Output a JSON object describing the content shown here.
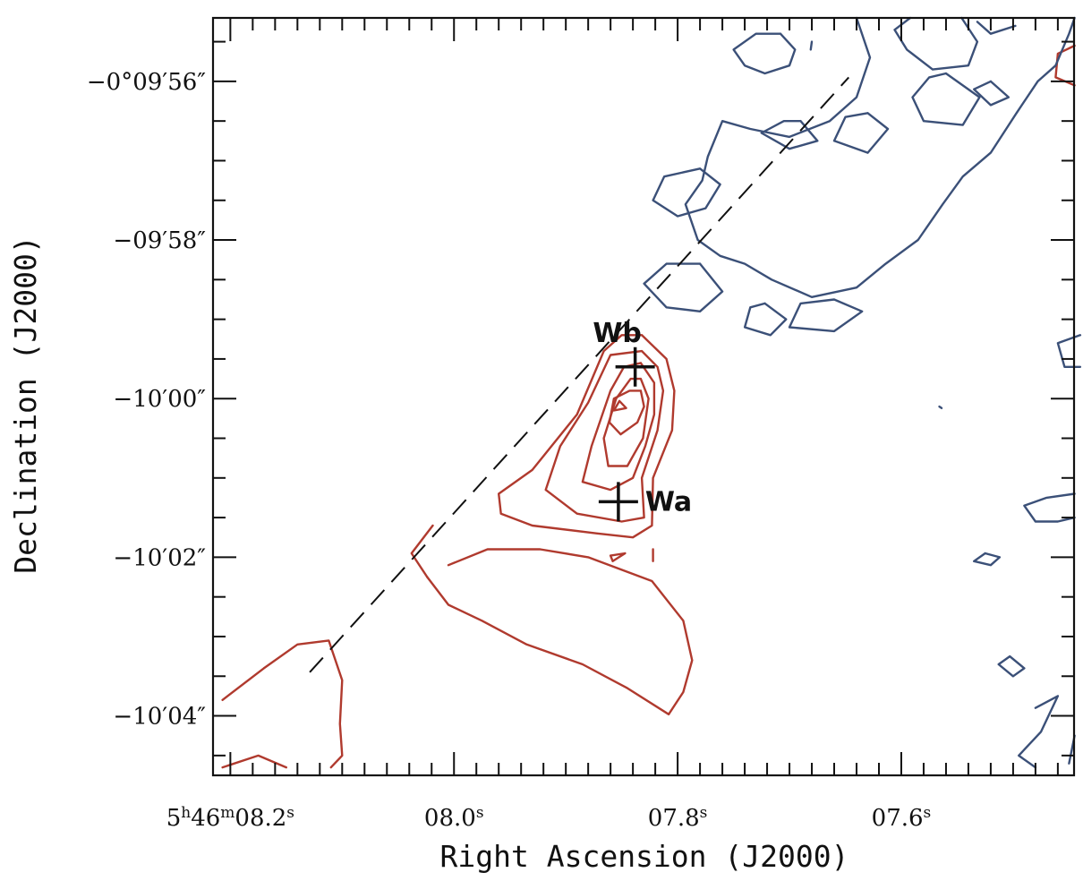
{
  "chart_data": {
    "type": "contour",
    "xlabel": "Right Ascension (J2000)",
    "ylabel": "Declination (J2000)",
    "x_ticks": [
      {
        "ra_s": 8.2,
        "parts": [
          [
            "5",
            "n"
          ],
          [
            "h",
            "sup"
          ],
          [
            "46",
            "n"
          ],
          [
            "m",
            "sup"
          ],
          [
            "08.2",
            "n"
          ],
          [
            "s",
            "sup"
          ]
        ]
      },
      {
        "ra_s": 8.0,
        "parts": [
          [
            "08.0",
            "n"
          ],
          [
            "s",
            "sup"
          ]
        ]
      },
      {
        "ra_s": 7.8,
        "parts": [
          [
            "07.8",
            "n"
          ],
          [
            "s",
            "sup"
          ]
        ]
      },
      {
        "ra_s": 7.6,
        "parts": [
          [
            "07.6",
            "n"
          ],
          [
            "s",
            "sup"
          ]
        ]
      }
    ],
    "y_ticks": [
      {
        "dec_arcsec": 596,
        "label": "−0°09′56″"
      },
      {
        "dec_arcsec": 598,
        "label": "−09′58″"
      },
      {
        "dec_arcsec": 600,
        "label": "−10′00″"
      },
      {
        "dec_arcsec": 602,
        "label": "−10′02″"
      },
      {
        "dec_arcsec": 604,
        "label": "−10′04″"
      }
    ],
    "xlim": [
      8.2155,
      7.4455
    ],
    "ylim": [
      595.2,
      604.75
    ],
    "sources": [
      {
        "name": "Wb",
        "ra_s": 7.838,
        "dec_arcsec": 599.6
      },
      {
        "name": "Wa",
        "ra_s": 7.853,
        "dec_arcsec": 601.3
      }
    ],
    "outflow_axis": {
      "from": [
        8.129,
        603.45
      ],
      "to": [
        7.647,
        595.95
      ]
    },
    "colors": {
      "red_contours": "#b03a2e",
      "blue_contours": "#3b5078",
      "axis": "#111111"
    },
    "red_contours": [
      [
        [
          7.832,
          599.2
        ],
        [
          7.81,
          599.5
        ],
        [
          7.803,
          599.9
        ],
        [
          7.805,
          600.4
        ],
        [
          7.822,
          601.0
        ],
        [
          7.823,
          601.6
        ],
        [
          7.84,
          601.75
        ],
        [
          7.872,
          601.7
        ],
        [
          7.93,
          601.6
        ],
        [
          7.958,
          601.45
        ],
        [
          7.96,
          601.2
        ],
        [
          7.93,
          600.9
        ],
        [
          7.89,
          600.2
        ],
        [
          7.866,
          599.4
        ],
        [
          7.85,
          599.2
        ],
        [
          7.832,
          599.2
        ]
      ],
      [
        [
          7.832,
          599.4
        ],
        [
          7.818,
          599.6
        ],
        [
          7.813,
          599.9
        ],
        [
          7.818,
          600.4
        ],
        [
          7.832,
          601.0
        ],
        [
          7.83,
          601.5
        ],
        [
          7.85,
          601.55
        ],
        [
          7.89,
          601.45
        ],
        [
          7.918,
          601.15
        ],
        [
          7.905,
          600.6
        ],
        [
          7.88,
          600.05
        ],
        [
          7.86,
          599.45
        ],
        [
          7.832,
          599.4
        ]
      ],
      [
        [
          7.833,
          599.55
        ],
        [
          7.821,
          599.8
        ],
        [
          7.821,
          600.2
        ],
        [
          7.829,
          600.6
        ],
        [
          7.84,
          601.0
        ],
        [
          7.86,
          601.15
        ],
        [
          7.885,
          601.05
        ],
        [
          7.877,
          600.6
        ],
        [
          7.86,
          599.9
        ],
        [
          7.848,
          599.6
        ],
        [
          7.833,
          599.55
        ]
      ],
      [
        [
          7.833,
          599.75
        ],
        [
          7.826,
          600.0
        ],
        [
          7.831,
          600.5
        ],
        [
          7.845,
          600.85
        ],
        [
          7.862,
          600.85
        ],
        [
          7.866,
          600.5
        ],
        [
          7.855,
          600.0
        ],
        [
          7.842,
          599.75
        ],
        [
          7.833,
          599.75
        ]
      ],
      [
        [
          7.833,
          599.9
        ],
        [
          7.83,
          600.1
        ],
        [
          7.836,
          600.3
        ],
        [
          7.851,
          600.45
        ],
        [
          7.861,
          600.3
        ],
        [
          7.857,
          600.0
        ],
        [
          7.843,
          599.9
        ],
        [
          7.833,
          599.9
        ]
      ],
      [
        [
          7.852,
          600.03
        ],
        [
          7.846,
          600.12
        ],
        [
          7.857,
          600.15
        ],
        [
          7.852,
          600.03
        ]
      ],
      [
        [
          7.847,
          601.95
        ],
        [
          7.86,
          601.98
        ],
        [
          7.858,
          602.05
        ],
        [
          7.847,
          601.95
        ]
      ],
      [
        [
          7.822,
          601.9
        ],
        [
          7.822,
          602.05
        ]
      ],
      [
        [
          8.005,
          602.1
        ],
        [
          7.97,
          601.9
        ],
        [
          7.923,
          601.9
        ],
        [
          7.88,
          602.0
        ],
        [
          7.823,
          602.3
        ],
        [
          7.795,
          602.8
        ],
        [
          7.787,
          603.3
        ],
        [
          7.795,
          603.7
        ],
        [
          7.808,
          603.98
        ],
        [
          7.845,
          603.65
        ],
        [
          7.885,
          603.35
        ],
        [
          7.935,
          603.1
        ],
        [
          7.975,
          602.8
        ],
        [
          8.005,
          602.6
        ],
        [
          8.024,
          602.25
        ]
      ],
      [
        [
          8.024,
          602.25
        ],
        [
          8.038,
          601.95
        ],
        [
          8.019,
          601.6
        ]
      ],
      [
        [
          8.207,
          603.8
        ],
        [
          8.17,
          603.4
        ],
        [
          8.14,
          603.1
        ],
        [
          8.112,
          603.05
        ],
        [
          8.1,
          603.55
        ],
        [
          8.102,
          604.1
        ],
        [
          8.1,
          604.5
        ],
        [
          8.11,
          604.65
        ]
      ],
      [
        [
          8.207,
          604.65
        ],
        [
          8.175,
          604.5
        ],
        [
          8.15,
          604.65
        ]
      ],
      [
        [
          7.445,
          595.55
        ],
        [
          7.46,
          595.65
        ],
        [
          7.462,
          595.95
        ],
        [
          7.445,
          596.05
        ]
      ]
    ],
    "blue_contours": [
      [
        [
          7.64,
          595.2
        ],
        [
          7.628,
          595.7
        ],
        [
          7.64,
          596.2
        ],
        [
          7.664,
          596.5
        ],
        [
          7.7,
          596.7
        ],
        [
          7.735,
          596.6
        ],
        [
          7.76,
          596.5
        ],
        [
          7.773,
          596.95
        ],
        [
          7.778,
          597.25
        ],
        [
          7.793,
          597.55
        ],
        [
          7.782,
          598.0
        ],
        [
          7.762,
          598.2
        ],
        [
          7.74,
          598.3
        ],
        [
          7.716,
          598.5
        ],
        [
          7.68,
          598.72
        ],
        [
          7.64,
          598.6
        ],
        [
          7.614,
          598.3
        ],
        [
          7.585,
          598.0
        ],
        [
          7.563,
          597.55
        ],
        [
          7.545,
          597.2
        ],
        [
          7.52,
          596.9
        ],
        [
          7.497,
          596.4
        ],
        [
          7.478,
          596.0
        ],
        [
          7.462,
          595.8
        ],
        [
          7.45,
          595.4
        ],
        [
          7.445,
          595.2
        ]
      ],
      [
        [
          7.546,
          595.2
        ],
        [
          7.532,
          595.5
        ],
        [
          7.54,
          595.8
        ],
        [
          7.572,
          595.85
        ],
        [
          7.595,
          595.6
        ],
        [
          7.606,
          595.35
        ],
        [
          7.592,
          595.2
        ]
      ],
      [
        [
          7.532,
          595.25
        ],
        [
          7.52,
          595.4
        ],
        [
          7.498,
          595.3
        ]
      ],
      [
        [
          7.68,
          595.5
        ],
        [
          7.681,
          595.6
        ]
      ],
      [
        [
          7.708,
          595.4
        ],
        [
          7.695,
          595.6
        ],
        [
          7.7,
          595.8
        ],
        [
          7.722,
          595.9
        ],
        [
          7.74,
          595.8
        ],
        [
          7.75,
          595.6
        ],
        [
          7.73,
          595.4
        ],
        [
          7.708,
          595.4
        ]
      ],
      [
        [
          7.56,
          595.9
        ],
        [
          7.53,
          596.2
        ],
        [
          7.545,
          596.55
        ],
        [
          7.58,
          596.5
        ],
        [
          7.59,
          596.2
        ],
        [
          7.575,
          595.95
        ],
        [
          7.56,
          595.9
        ]
      ],
      [
        [
          7.63,
          596.4
        ],
        [
          7.612,
          596.6
        ],
        [
          7.63,
          596.9
        ],
        [
          7.66,
          596.75
        ],
        [
          7.65,
          596.45
        ],
        [
          7.63,
          596.4
        ]
      ],
      [
        [
          7.69,
          596.5
        ],
        [
          7.675,
          596.75
        ],
        [
          7.7,
          596.85
        ],
        [
          7.725,
          596.65
        ],
        [
          7.705,
          596.5
        ],
        [
          7.69,
          596.5
        ]
      ],
      [
        [
          7.78,
          597.1
        ],
        [
          7.762,
          597.3
        ],
        [
          7.775,
          597.6
        ],
        [
          7.8,
          597.7
        ],
        [
          7.822,
          597.5
        ],
        [
          7.812,
          597.2
        ],
        [
          7.78,
          597.1
        ]
      ],
      [
        [
          7.78,
          598.3
        ],
        [
          7.76,
          598.65
        ],
        [
          7.78,
          598.9
        ],
        [
          7.81,
          598.85
        ],
        [
          7.83,
          598.55
        ],
        [
          7.81,
          598.3
        ],
        [
          7.78,
          598.3
        ]
      ],
      [
        [
          7.722,
          598.8
        ],
        [
          7.703,
          599.0
        ],
        [
          7.717,
          599.2
        ],
        [
          7.74,
          599.1
        ],
        [
          7.735,
          598.85
        ],
        [
          7.722,
          598.8
        ]
      ],
      [
        [
          7.66,
          598.75
        ],
        [
          7.635,
          598.9
        ],
        [
          7.66,
          599.15
        ],
        [
          7.7,
          599.1
        ],
        [
          7.69,
          598.8
        ],
        [
          7.66,
          598.75
        ]
      ],
      [
        [
          7.52,
          596.0
        ],
        [
          7.504,
          596.2
        ],
        [
          7.52,
          596.3
        ],
        [
          7.535,
          596.1
        ],
        [
          7.52,
          596.0
        ]
      ],
      [
        [
          7.44,
          599.2
        ],
        [
          7.46,
          599.3
        ],
        [
          7.454,
          599.6
        ],
        [
          7.44,
          599.6
        ]
      ],
      [
        [
          7.566,
          600.1
        ],
        [
          7.564,
          600.12
        ]
      ],
      [
        [
          7.445,
          601.2
        ],
        [
          7.47,
          601.25
        ],
        [
          7.49,
          601.35
        ],
        [
          7.48,
          601.55
        ],
        [
          7.46,
          601.55
        ],
        [
          7.445,
          601.5
        ]
      ],
      [
        [
          7.525,
          601.95
        ],
        [
          7.512,
          602.0
        ],
        [
          7.52,
          602.1
        ],
        [
          7.535,
          602.05
        ],
        [
          7.525,
          601.95
        ]
      ],
      [
        [
          7.503,
          603.25
        ],
        [
          7.49,
          603.4
        ],
        [
          7.5,
          603.5
        ],
        [
          7.513,
          603.35
        ],
        [
          7.503,
          603.25
        ]
      ],
      [
        [
          7.48,
          603.9
        ],
        [
          7.46,
          603.75
        ],
        [
          7.475,
          604.2
        ],
        [
          7.495,
          604.5
        ],
        [
          7.48,
          604.65
        ]
      ],
      [
        [
          7.45,
          604.6
        ],
        [
          7.445,
          604.25
        ]
      ]
    ]
  }
}
